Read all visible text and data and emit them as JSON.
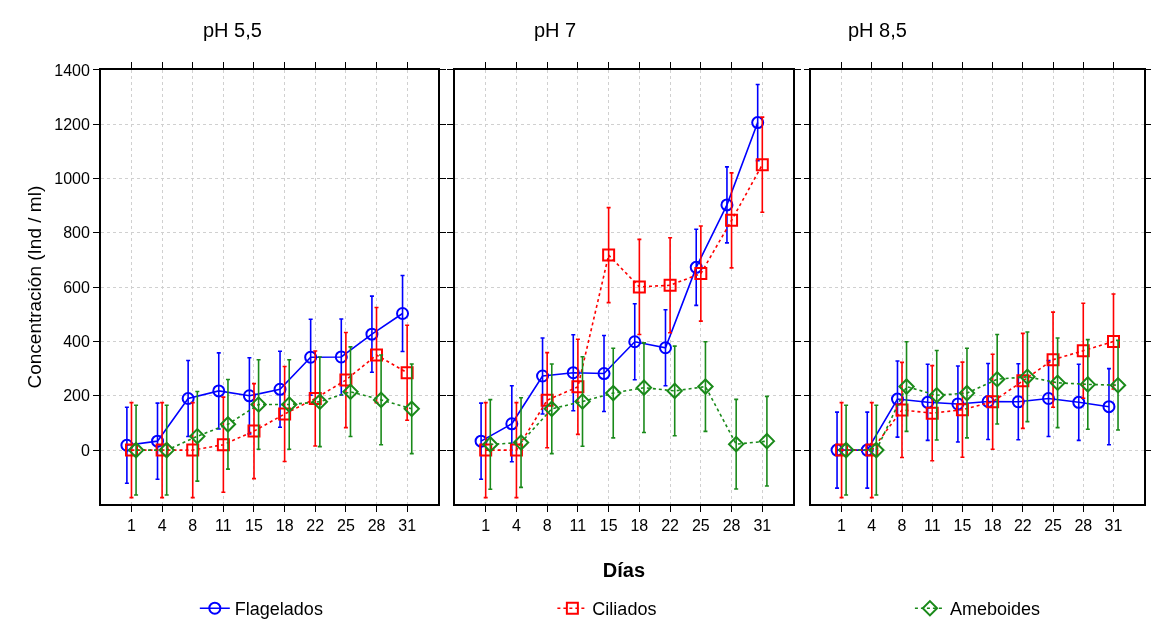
{
  "chart_data": [
    {
      "type": "line",
      "title": "pH 5,5",
      "ylabel": "Concentración (Ind / ml)",
      "categories": [
        "1",
        "4",
        "8",
        "11",
        "15",
        "18",
        "22",
        "25",
        "28",
        "31"
      ],
      "ylim": [
        -200,
        1400
      ],
      "yticks": [
        0,
        200,
        400,
        600,
        800,
        1000,
        1200,
        1400
      ],
      "grid": true,
      "legend": "bottom",
      "series": [
        {
          "name": "Flagelados",
          "color": "#0000ff",
          "marker": "circle",
          "line_style": "solid",
          "values": [
            18,
            33,
            190,
            218,
            200,
            224,
            342,
            343,
            427,
            503
          ],
          "errors": [
            140,
            140,
            140,
            140,
            140,
            140,
            140,
            140,
            140,
            140
          ]
        },
        {
          "name": "Ciliados",
          "color": "#ff0000",
          "marker": "square",
          "line_style": "dotted",
          "values": [
            0,
            0,
            0,
            20,
            70,
            133,
            190,
            258,
            350,
            285
          ],
          "errors": [
            175,
            175,
            175,
            175,
            175,
            175,
            175,
            175,
            175,
            175
          ]
        },
        {
          "name": "Ameboides",
          "color": "#1a8a1a",
          "marker": "diamond",
          "line_style": "dotted",
          "values": [
            0,
            0,
            51,
            95,
            168,
            168,
            178,
            215,
            185,
            152
          ],
          "errors": [
            165,
            165,
            165,
            165,
            165,
            165,
            165,
            165,
            165,
            165
          ]
        }
      ]
    },
    {
      "type": "line",
      "title": "pH 7",
      "xlabel": "Días",
      "categories": [
        "1",
        "4",
        "8",
        "11",
        "15",
        "18",
        "22",
        "25",
        "28",
        "31"
      ],
      "ylim": [
        -200,
        1400
      ],
      "yticks": [
        0,
        200,
        400,
        600,
        800,
        1000,
        1200,
        1400
      ],
      "grid": true,
      "tick_labels": "x",
      "series": [
        {
          "color": "#0000ff",
          "marker": "circle",
          "line_style": "solid",
          "values": [
            33,
            97,
            273,
            285,
            282,
            399,
            377,
            673,
            903,
            1206
          ],
          "errors": [
            140,
            140,
            140,
            140,
            140,
            140,
            140,
            140,
            140,
            140
          ]
        },
        {
          "color": "#ff0000",
          "marker": "square",
          "line_style": "dotted",
          "values": [
            0,
            0,
            184,
            233,
            718,
            601,
            607,
            650,
            846,
            1051
          ],
          "errors": [
            175,
            175,
            175,
            175,
            175,
            175,
            175,
            175,
            175,
            175
          ]
        },
        {
          "color": "#1a8a1a",
          "marker": "diamond",
          "line_style": "dotted",
          "values": [
            21,
            28,
            152,
            179,
            210,
            230,
            218,
            234,
            22,
            33
          ],
          "errors": [
            165,
            165,
            165,
            165,
            165,
            165,
            165,
            165,
            165,
            165
          ]
        }
      ]
    },
    {
      "type": "line",
      "title": "pH 8,5",
      "categories": [
        "1",
        "4",
        "8",
        "11",
        "15",
        "18",
        "22",
        "25",
        "28",
        "31"
      ],
      "ylim": [
        -200,
        1400
      ],
      "yticks": [
        0,
        200,
        400,
        600,
        800,
        1000,
        1200,
        1400
      ],
      "grid": true,
      "tick_labels": "x",
      "series": [
        {
          "color": "#0000ff",
          "marker": "circle",
          "line_style": "solid",
          "values": [
            0,
            0,
            188,
            176,
            170,
            179,
            178,
            190,
            176,
            160
          ],
          "errors": [
            140,
            140,
            140,
            140,
            140,
            140,
            140,
            140,
            140,
            140
          ]
        },
        {
          "color": "#ff0000",
          "marker": "square",
          "line_style": "dotted",
          "values": [
            0,
            0,
            148,
            136,
            149,
            178,
            255,
            333,
            366,
            400
          ],
          "errors": [
            175,
            175,
            175,
            175,
            175,
            175,
            175,
            175,
            175,
            175
          ]
        },
        {
          "color": "#1a8a1a",
          "marker": "diamond",
          "line_style": "dotted",
          "values": [
            0,
            0,
            234,
            202,
            210,
            261,
            270,
            248,
            242,
            239
          ],
          "errors": [
            165,
            165,
            165,
            165,
            165,
            165,
            165,
            165,
            165,
            165
          ]
        }
      ]
    }
  ]
}
